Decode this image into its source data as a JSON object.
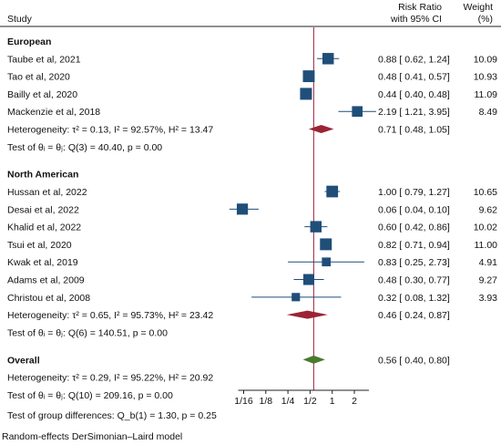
{
  "chart_data": {
    "type": "forest",
    "headers": {
      "study": "Study",
      "rr_line1": "Risk Ratio",
      "rr_line2": "with 95% CI",
      "weight_line1": "Weight",
      "weight_line2": "(%)"
    },
    "x_axis": {
      "scale": "log2",
      "range": [
        0.0625,
        2.5
      ],
      "ticks": [
        {
          "value": 0.0625,
          "label": "1/16"
        },
        {
          "value": 0.125,
          "label": "1/8"
        },
        {
          "value": 0.25,
          "label": "1/4"
        },
        {
          "value": 0.5,
          "label": "1/2"
        },
        {
          "value": 1,
          "label": "1"
        },
        {
          "value": 2,
          "label": "2"
        }
      ],
      "reference_line": 0.56
    },
    "groups": [
      {
        "name": "European",
        "studies": [
          {
            "label": "Taube et al, 2021",
            "rr": 0.88,
            "lo": 0.62,
            "hi": 1.24,
            "ci_text": "0.88 [ 0.62,  1.24]",
            "weight": "10.09"
          },
          {
            "label": "Tao et al, 2020",
            "rr": 0.48,
            "lo": 0.41,
            "hi": 0.57,
            "ci_text": "0.48 [ 0.41,  0.57]",
            "weight": "10.93"
          },
          {
            "label": "Bailly et al, 2020",
            "rr": 0.44,
            "lo": 0.4,
            "hi": 0.48,
            "ci_text": "0.44 [ 0.40,  0.48]",
            "weight": "11.09"
          },
          {
            "label": "Mackenzie et al, 2018",
            "rr": 2.19,
            "lo": 1.21,
            "hi": 3.95,
            "ci_text": "2.19 [ 1.21,  3.95]",
            "weight": "8.49"
          }
        ],
        "pooled": {
          "label": "Heterogeneity: τ² = 0.13, I² = 92.57%, H² = 13.47",
          "rr": 0.71,
          "lo": 0.48,
          "hi": 1.05,
          "ci_text": "0.71 [ 0.48,  1.05]"
        },
        "test": "Test of θᵢ = θⱼ: Q(3) = 40.40, p = 0.00"
      },
      {
        "name": "North American",
        "studies": [
          {
            "label": "Hussan et al, 2022",
            "rr": 1.0,
            "lo": 0.79,
            "hi": 1.27,
            "ci_text": "1.00 [ 0.79,  1.27]",
            "weight": "10.65"
          },
          {
            "label": "Desai et al, 2022",
            "rr": 0.06,
            "lo": 0.04,
            "hi": 0.1,
            "ci_text": "0.06 [ 0.04,  0.10]",
            "weight": "9.62"
          },
          {
            "label": "Khalid et al, 2022",
            "rr": 0.6,
            "lo": 0.42,
            "hi": 0.86,
            "ci_text": "0.60 [ 0.42,  0.86]",
            "weight": "10.02"
          },
          {
            "label": "Tsui et al, 2020",
            "rr": 0.82,
            "lo": 0.71,
            "hi": 0.94,
            "ci_text": "0.82 [ 0.71,  0.94]",
            "weight": "11.00"
          },
          {
            "label": "Kwak et al, 2019",
            "rr": 0.83,
            "lo": 0.25,
            "hi": 2.73,
            "ci_text": "0.83 [ 0.25,  2.73]",
            "weight": "4.91"
          },
          {
            "label": "Adams et al, 2009",
            "rr": 0.48,
            "lo": 0.3,
            "hi": 0.77,
            "ci_text": "0.48 [ 0.30,  0.77]",
            "weight": "9.27"
          },
          {
            "label": "Christou et al, 2008",
            "rr": 0.32,
            "lo": 0.08,
            "hi": 1.32,
            "ci_text": "0.32 [ 0.08,  1.32]",
            "weight": "3.93"
          }
        ],
        "pooled": {
          "label": "Heterogeneity: τ² = 0.65, I² = 95.73%, H² = 23.42",
          "rr": 0.46,
          "lo": 0.24,
          "hi": 0.87,
          "ci_text": "0.46 [ 0.24,  0.87]"
        },
        "test": "Test of θᵢ = θⱼ: Q(6) = 140.51, p = 0.00"
      }
    ],
    "overall": {
      "name": "Overall",
      "pooled": {
        "label": "Heterogeneity: τ² = 0.29, I² = 95.22%, H² = 20.92",
        "rr": 0.56,
        "lo": 0.4,
        "hi": 0.8,
        "ci_text": "0.56 [ 0.40,  0.80]"
      },
      "test": "Test of θᵢ = θⱼ: Q(10) = 209.16, p = 0.00",
      "group_test": "Test of group differences: Q_b(1) = 1.30, p = 0.25"
    },
    "footnote": "Random-effects DerSimonian–Laird model",
    "colors": {
      "marker": "#1f4e79",
      "group_diamond": "#9b2335",
      "overall_diamond": "#4a7a2e",
      "reference_line": "#9b2335",
      "ci_line": "#1f4e79"
    }
  }
}
